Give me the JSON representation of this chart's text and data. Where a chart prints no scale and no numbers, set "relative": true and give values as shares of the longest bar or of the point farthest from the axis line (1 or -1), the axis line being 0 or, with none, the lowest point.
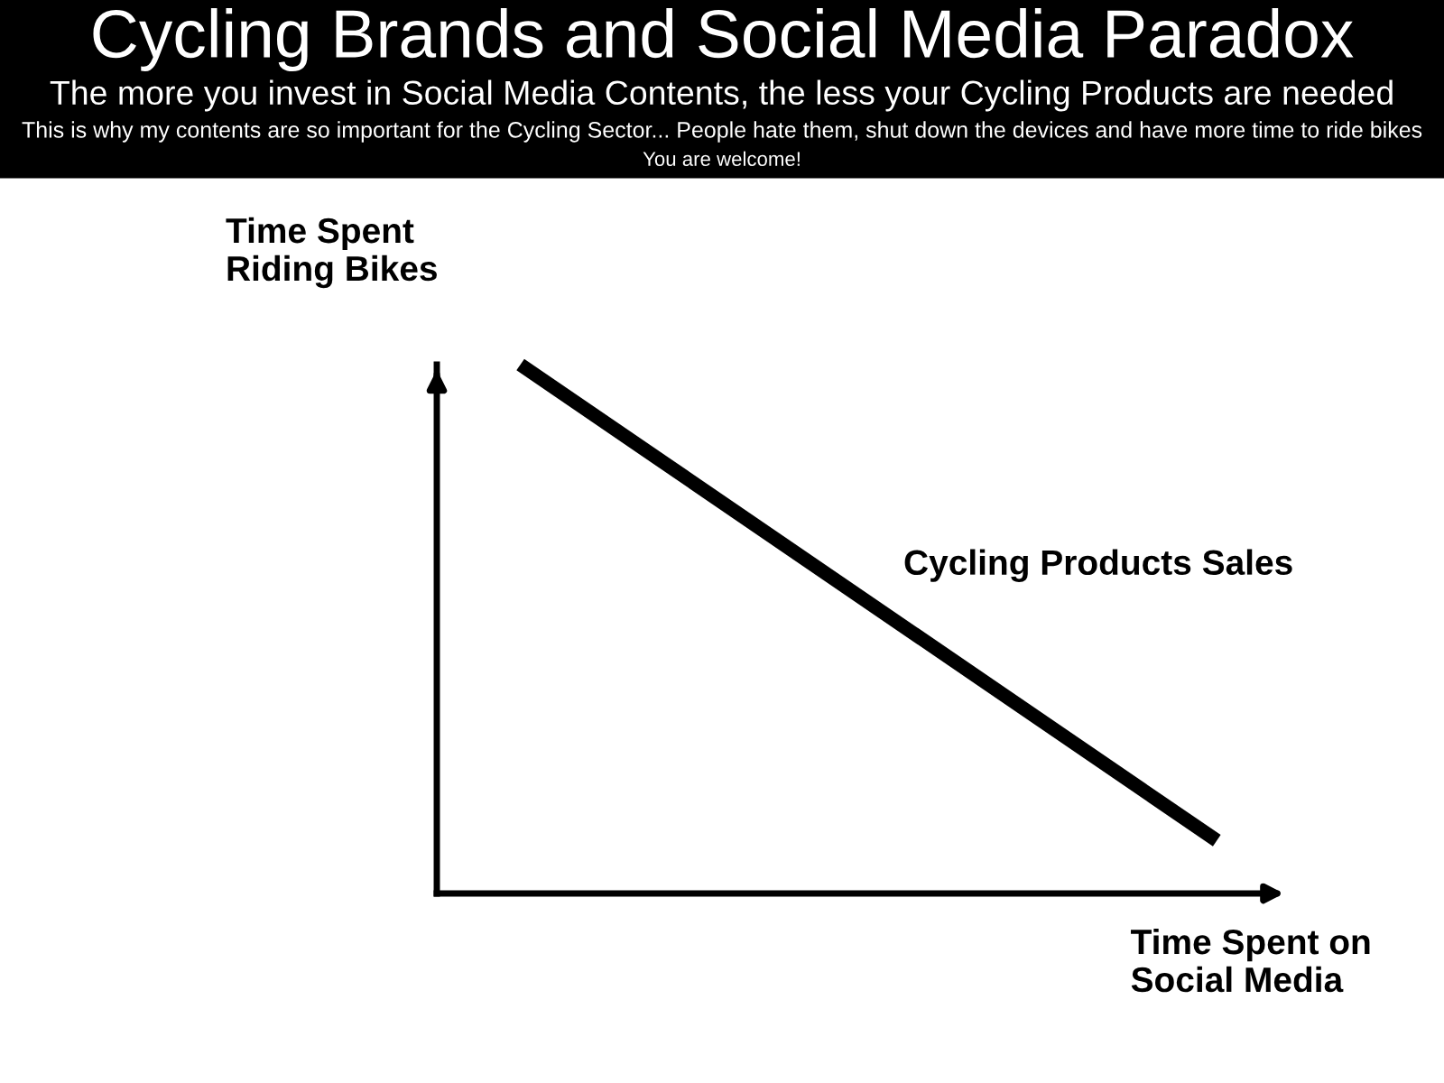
{
  "chart_data": {
    "type": "line",
    "title": "Cycling Brands and Social Media Paradox",
    "subtitle": "The more you invest in Social Media Contents, the less your Cycling Products are needed",
    "annotations": [
      "This is why my contents are so important for the Cycling Sector... People hate them, shut down the devices and have more time to ride bikes",
      "You are welcome!"
    ],
    "xlabel": "Time Spent on\nSocial Media",
    "ylabel": "Time Spent\nRiding Bikes",
    "categories": [
      null,
      null
    ],
    "series": [
      {
        "name": "Cycling Products Sales",
        "color": "#000000",
        "values": [
          1,
          0.1
        ]
      }
    ],
    "relative": true,
    "line_style": "solid"
  }
}
